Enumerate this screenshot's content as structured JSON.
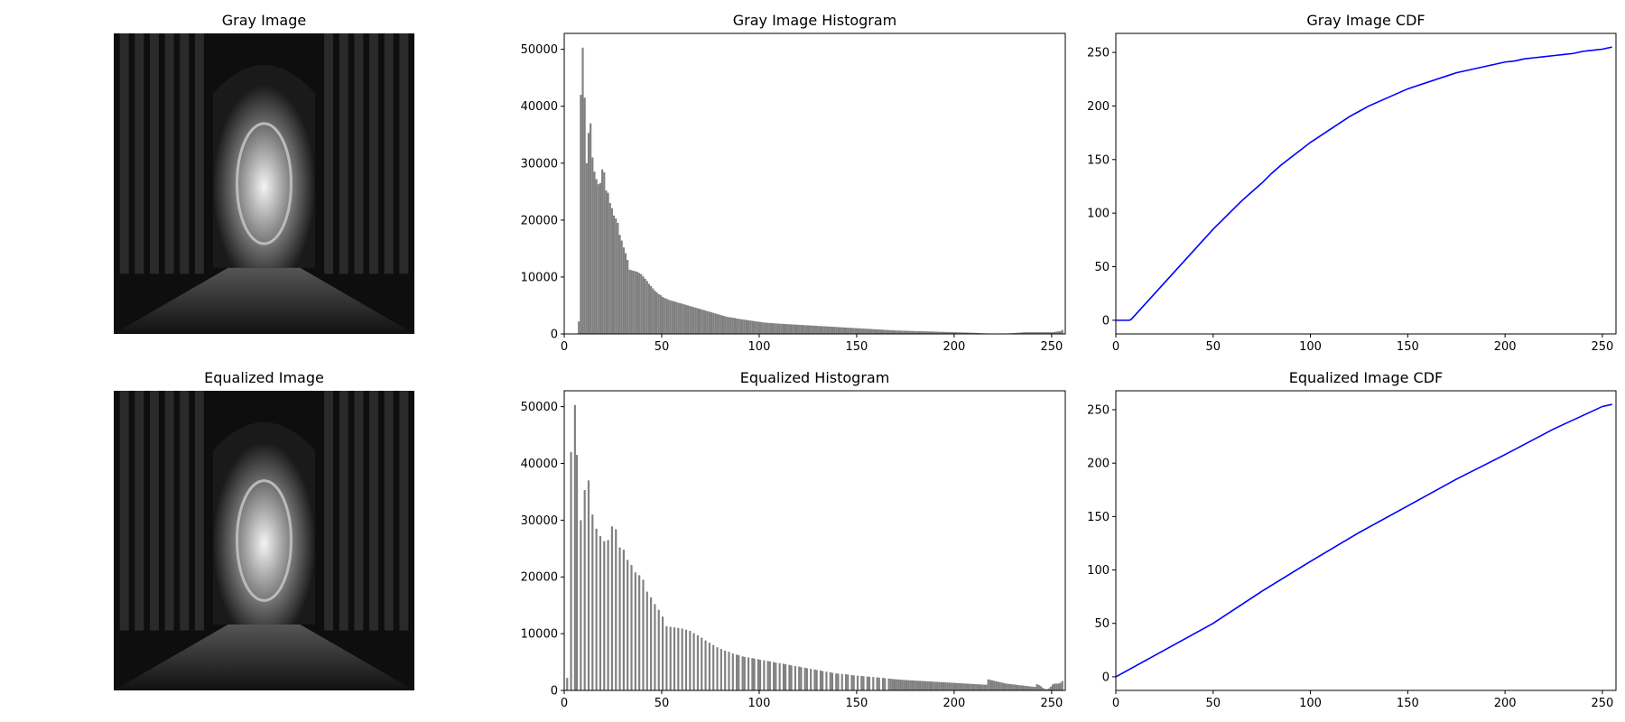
{
  "chart_data": [
    {
      "type": "image",
      "title": "Gray Image"
    },
    {
      "type": "histogram",
      "title": "Gray Image Histogram",
      "color": "#808080",
      "bins": [
        0,
        1,
        2,
        3,
        4,
        5,
        6,
        7,
        8,
        9,
        10,
        11,
        12,
        13,
        14,
        15,
        16,
        17,
        18,
        19,
        20,
        21,
        22,
        23,
        24,
        25,
        26,
        27,
        28,
        29,
        30,
        31,
        32,
        33,
        34,
        35,
        36,
        37,
        38,
        39,
        40,
        41,
        42,
        43,
        44,
        45,
        46,
        47,
        48,
        49,
        50,
        51,
        52,
        53,
        54,
        55,
        56,
        57,
        58,
        59,
        60,
        61,
        62,
        63,
        64,
        65,
        66,
        67,
        68,
        69,
        70,
        71,
        72,
        73,
        74,
        75,
        76,
        77,
        78,
        79,
        80,
        81,
        82,
        83,
        84,
        85,
        86,
        87,
        88,
        89,
        90,
        91,
        92,
        93,
        94,
        95,
        96,
        97,
        98,
        99,
        100,
        101,
        102,
        103,
        104,
        105,
        106,
        107,
        108,
        109,
        110,
        111,
        112,
        113,
        114,
        115,
        116,
        117,
        118,
        119,
        120,
        121,
        122,
        123,
        124,
        125,
        126,
        127,
        128,
        129,
        130,
        131,
        132,
        133,
        134,
        135,
        136,
        137,
        138,
        139,
        140,
        141,
        142,
        143,
        144,
        145,
        146,
        147,
        148,
        149,
        150,
        151,
        152,
        153,
        154,
        155,
        156,
        157,
        158,
        159,
        160,
        161,
        162,
        163,
        164,
        165,
        166,
        167,
        168,
        169,
        170,
        171,
        172,
        173,
        174,
        175,
        176,
        177,
        178,
        179,
        180,
        181,
        182,
        183,
        184,
        185,
        186,
        187,
        188,
        189,
        190,
        191,
        192,
        193,
        194,
        195,
        196,
        197,
        198,
        199,
        200,
        201,
        202,
        203,
        204,
        205,
        206,
        207,
        208,
        209,
        210,
        211,
        212,
        213,
        214,
        215,
        216,
        217,
        218,
        219,
        220,
        221,
        222,
        223,
        224,
        225,
        226,
        227,
        228,
        229,
        230,
        231,
        232,
        233,
        234,
        235,
        236,
        237,
        238,
        239,
        240,
        241,
        242,
        243,
        244,
        245,
        246,
        247,
        248,
        249,
        250,
        251,
        252,
        253,
        254,
        255,
        256
      ],
      "values": [
        0,
        0,
        0,
        0,
        0,
        0,
        0,
        2200,
        42000,
        50300,
        41500,
        30000,
        35300,
        37000,
        31000,
        28500,
        27200,
        26300,
        26500,
        28900,
        28400,
        25200,
        24800,
        23000,
        22100,
        20800,
        20300,
        19500,
        17400,
        16400,
        15200,
        14200,
        13000,
        11300,
        11200,
        11100,
        11000,
        10900,
        10700,
        10500,
        10100,
        9700,
        9300,
        8800,
        8400,
        8000,
        7600,
        7300,
        7000,
        6800,
        6500,
        6300,
        6200,
        6000,
        5900,
        5800,
        5700,
        5600,
        5500,
        5400,
        5300,
        5200,
        5100,
        5000,
        4900,
        4800,
        4700,
        4600,
        4500,
        4400,
        4300,
        4200,
        4100,
        4000,
        3900,
        3800,
        3700,
        3600,
        3500,
        3400,
        3300,
        3200,
        3100,
        3000,
        2950,
        2900,
        2850,
        2800,
        2700,
        2650,
        2600,
        2550,
        2500,
        2450,
        2400,
        2350,
        2300,
        2250,
        2200,
        2150,
        2100,
        2050,
        2000,
        1980,
        1950,
        1920,
        1900,
        1870,
        1850,
        1820,
        1800,
        1780,
        1760,
        1740,
        1720,
        1700,
        1680,
        1660,
        1640,
        1620,
        1600,
        1580,
        1560,
        1540,
        1520,
        1500,
        1480,
        1460,
        1440,
        1420,
        1400,
        1380,
        1360,
        1340,
        1320,
        1300,
        1280,
        1260,
        1240,
        1220,
        1200,
        1180,
        1160,
        1140,
        1120,
        1100,
        1080,
        1060,
        1040,
        1020,
        1000,
        980,
        960,
        940,
        920,
        900,
        880,
        860,
        840,
        820,
        800,
        780,
        760,
        740,
        720,
        700,
        680,
        660,
        640,
        620,
        600,
        590,
        580,
        570,
        560,
        550,
        540,
        530,
        520,
        510,
        500,
        490,
        480,
        470,
        460,
        450,
        440,
        430,
        420,
        410,
        400,
        390,
        380,
        370,
        360,
        350,
        340,
        330,
        320,
        310,
        300,
        290,
        280,
        270,
        260,
        250,
        240,
        230,
        220,
        210,
        200,
        180,
        160,
        140,
        120,
        100,
        90,
        80,
        70,
        60,
        50,
        50,
        50,
        50,
        60,
        70,
        80,
        90,
        100,
        120,
        150,
        180,
        200,
        220,
        250,
        280,
        300,
        300,
        300,
        300,
        300,
        300,
        300,
        300,
        300,
        300,
        300,
        300,
        300,
        300,
        300,
        350,
        400,
        450,
        500,
        700
      ],
      "xlim": [
        0,
        257
      ],
      "ylim": [
        0,
        52800
      ],
      "xticks": [
        0,
        50,
        100,
        150,
        200,
        250
      ],
      "yticks": [
        0,
        10000,
        20000,
        30000,
        40000,
        50000
      ]
    },
    {
      "type": "line",
      "title": "Gray Image CDF",
      "color": "#0000ff",
      "x": [
        0,
        5,
        6,
        7,
        8,
        10,
        15,
        20,
        25,
        30,
        35,
        40,
        45,
        50,
        55,
        60,
        65,
        70,
        75,
        80,
        85,
        90,
        95,
        100,
        105,
        110,
        115,
        120,
        125,
        130,
        135,
        140,
        145,
        150,
        155,
        160,
        165,
        170,
        175,
        180,
        185,
        190,
        195,
        200,
        205,
        210,
        215,
        220,
        225,
        230,
        235,
        240,
        245,
        250,
        255
      ],
      "y": [
        0,
        0,
        0,
        0,
        1,
        5,
        15,
        25,
        35,
        45,
        55,
        65,
        75,
        85,
        94,
        103,
        112,
        120,
        128,
        137,
        145,
        152,
        159,
        166,
        172,
        178,
        184,
        190,
        195,
        200,
        204,
        208,
        212,
        216,
        219,
        222,
        225,
        228,
        231,
        233,
        235,
        237,
        239,
        241,
        242,
        244,
        245,
        246,
        247,
        248,
        249,
        251,
        252,
        253,
        255
      ],
      "xlim": [
        0,
        257
      ],
      "ylim": [
        -12.75,
        267.75
      ],
      "xticks": [
        0,
        50,
        100,
        150,
        200,
        250
      ],
      "yticks": [
        0,
        50,
        100,
        150,
        200,
        250
      ]
    },
    {
      "type": "image",
      "title": "Equalized Image"
    },
    {
      "type": "histogram",
      "title": "Equalized Histogram",
      "color": "#808080",
      "bins": [
        0,
        1,
        2,
        3,
        4,
        5,
        6,
        7,
        8,
        9,
        10,
        11,
        12,
        13,
        14,
        15,
        16,
        17,
        18,
        19,
        20,
        21,
        22,
        23,
        24,
        25,
        26,
        27,
        28,
        29,
        30,
        31,
        32,
        33,
        34,
        35,
        36,
        37,
        38,
        39,
        40,
        41,
        42,
        43,
        44,
        45,
        46,
        47,
        48,
        49,
        50,
        51,
        52,
        53,
        54,
        55,
        56,
        57,
        58,
        59,
        60,
        61,
        62,
        63,
        64,
        65,
        66,
        67,
        68,
        69,
        70,
        71,
        72,
        73,
        74,
        75,
        76,
        77,
        78,
        79,
        80,
        81,
        82,
        83,
        84,
        85,
        86,
        87,
        88,
        89,
        90,
        91,
        92,
        93,
        94,
        95,
        96,
        97,
        98,
        99,
        100,
        101,
        102,
        103,
        104,
        105,
        106,
        107,
        108,
        109,
        110,
        111,
        112,
        113,
        114,
        115,
        116,
        117,
        118,
        119,
        120,
        121,
        122,
        123,
        124,
        125,
        126,
        127,
        128,
        129,
        130,
        131,
        132,
        133,
        134,
        135,
        136,
        137,
        138,
        139,
        140,
        141,
        142,
        143,
        144,
        145,
        146,
        147,
        148,
        149,
        150,
        151,
        152,
        153,
        154,
        155,
        156,
        157,
        158,
        159,
        160,
        161,
        162,
        163,
        164,
        165,
        166,
        167,
        168,
        169,
        170,
        171,
        172,
        173,
        174,
        175,
        176,
        177,
        178,
        179,
        180,
        181,
        182,
        183,
        184,
        185,
        186,
        187,
        188,
        189,
        190,
        191,
        192,
        193,
        194,
        195,
        196,
        197,
        198,
        199,
        200,
        201,
        202,
        203,
        204,
        205,
        206,
        207,
        208,
        209,
        210,
        211,
        212,
        213,
        214,
        215,
        216,
        217,
        218,
        219,
        220,
        221,
        222,
        223,
        224,
        225,
        226,
        227,
        228,
        229,
        230,
        231,
        232,
        233,
        234,
        235,
        236,
        237,
        238,
        239,
        240,
        241,
        242,
        243,
        244,
        245,
        246,
        247,
        248,
        249,
        250,
        251,
        252,
        253,
        254,
        255,
        256
      ],
      "values": [
        0,
        2200,
        0,
        42000,
        0,
        50300,
        41500,
        0,
        30000,
        0,
        35300,
        0,
        37000,
        0,
        31000,
        0,
        28500,
        0,
        27200,
        0,
        26300,
        0,
        26500,
        0,
        28900,
        0,
        28400,
        0,
        25200,
        0,
        24800,
        0,
        23000,
        0,
        22100,
        0,
        20800,
        0,
        20300,
        0,
        19500,
        0,
        17400,
        0,
        16400,
        0,
        15200,
        0,
        14200,
        0,
        13000,
        0,
        11300,
        0,
        11200,
        0,
        11100,
        0,
        11000,
        0,
        10900,
        0,
        10700,
        0,
        10500,
        0,
        10100,
        0,
        9700,
        0,
        9300,
        0,
        8800,
        0,
        8400,
        0,
        8000,
        0,
        7600,
        0,
        7300,
        0,
        7000,
        0,
        6800,
        0,
        6500,
        0,
        6300,
        6200,
        0,
        6000,
        5900,
        0,
        5800,
        0,
        5700,
        5600,
        0,
        5500,
        5400,
        0,
        5300,
        0,
        5200,
        5100,
        0,
        5000,
        4900,
        0,
        4800,
        0,
        4700,
        4600,
        0,
        4500,
        4400,
        0,
        4300,
        0,
        4200,
        4100,
        0,
        4000,
        3900,
        0,
        3800,
        0,
        3700,
        3600,
        0,
        3500,
        3400,
        0,
        3300,
        0,
        3200,
        3100,
        0,
        3000,
        2950,
        0,
        2900,
        0,
        2850,
        2800,
        0,
        2700,
        2650,
        0,
        2600,
        0,
        2550,
        2500,
        0,
        2450,
        2400,
        0,
        2350,
        0,
        2300,
        2250,
        0,
        2200,
        2150,
        0,
        2100,
        2050,
        2000,
        1980,
        1950,
        1920,
        1900,
        1870,
        1850,
        1820,
        1800,
        1780,
        1760,
        1740,
        1720,
        1700,
        1680,
        1660,
        1640,
        1620,
        1600,
        1580,
        1560,
        1540,
        1520,
        1500,
        1480,
        1460,
        1440,
        1420,
        1400,
        1380,
        1360,
        1340,
        1320,
        1300,
        1280,
        1260,
        1240,
        1220,
        1200,
        1180,
        1160,
        1140,
        1120,
        1100,
        1080,
        1060,
        1040,
        1020,
        1000,
        1940,
        1860,
        1780,
        1700,
        1620,
        1540,
        1460,
        1380,
        1300,
        1220,
        1170,
        1130,
        1090,
        1050,
        1010,
        970,
        930,
        890,
        850,
        810,
        770,
        730,
        690,
        650,
        610,
        1100,
        940,
        750,
        450,
        260,
        210,
        340,
        650,
        1050,
        1200,
        1200,
        1200,
        1350,
        1650
      ],
      "xlim": [
        0,
        257
      ],
      "ylim": [
        0,
        52800
      ],
      "xticks": [
        0,
        50,
        100,
        150,
        200,
        250
      ],
      "yticks": [
        0,
        10000,
        20000,
        30000,
        40000,
        50000
      ]
    },
    {
      "type": "line",
      "title": "Equalized Image CDF",
      "color": "#0000ff",
      "x": [
        0,
        25,
        50,
        75,
        100,
        125,
        150,
        175,
        200,
        225,
        250,
        255
      ],
      "y": [
        0,
        25,
        50,
        80,
        108,
        135,
        160,
        185,
        208,
        232,
        253,
        255
      ],
      "xlim": [
        0,
        257
      ],
      "ylim": [
        -12.75,
        267.75
      ],
      "xticks": [
        0,
        50,
        100,
        150,
        200,
        250
      ],
      "yticks": [
        0,
        50,
        100,
        150,
        200,
        250
      ]
    }
  ]
}
